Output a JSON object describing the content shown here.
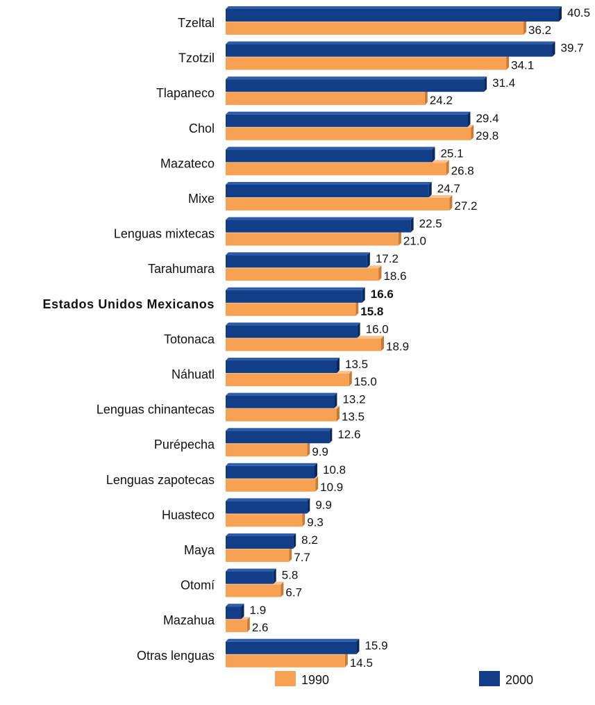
{
  "chart_data": {
    "type": "bar",
    "orientation": "horizontal",
    "categories": [
      "Tzeltal",
      "Tzotzil",
      "Tlapaneco",
      "Chol",
      "Mazateco",
      "Mixe",
      "Lenguas mixtecas",
      "Tarahumara",
      "Estados Unidos Mexicanos",
      "Totonaca",
      "Náhuatl",
      "Lenguas chinantecas",
      "Purépecha",
      "Lenguas zapotecas",
      "Huasteco",
      "Maya",
      "Otomí",
      "Mazahua",
      "Otras lenguas"
    ],
    "highlight_category": "Estados Unidos Mexicanos",
    "series": [
      {
        "name": "2000",
        "color": "#123E87",
        "values": [
          40.5,
          39.7,
          31.4,
          29.4,
          25.1,
          24.7,
          22.5,
          17.2,
          16.6,
          16.0,
          13.5,
          13.2,
          12.6,
          10.8,
          9.9,
          8.2,
          5.8,
          1.9,
          15.9
        ],
        "labels": [
          "40.5",
          "39.7",
          "31.4",
          "29.4",
          "25.1",
          "24.7",
          "22.5",
          "17.2",
          "16.6",
          "16.0",
          "13.5",
          "13.2",
          "12.6",
          "10.8",
          "9.9",
          "8.2",
          "5.8",
          "1.9",
          "15.9"
        ]
      },
      {
        "name": "1990",
        "color": "#F7A155",
        "values": [
          36.2,
          34.1,
          24.2,
          29.8,
          26.8,
          27.2,
          21.0,
          18.6,
          15.8,
          18.9,
          15.0,
          13.5,
          9.9,
          10.9,
          9.3,
          7.7,
          6.7,
          2.6,
          14.5
        ],
        "labels": [
          "36.2",
          "34.1",
          "24.2",
          "29.8",
          "26.8",
          "27.2",
          "21.0",
          "18.6",
          "15.8",
          "18.9",
          "15.0",
          "13.5",
          "9.9",
          "10.9",
          "9.3",
          "7.7",
          "6.7",
          "2.6",
          "14.5"
        ]
      }
    ],
    "title": "",
    "xlabel": "",
    "ylabel": "",
    "xlim": [
      0,
      40.5
    ],
    "grid": false,
    "legend": {
      "position": "bottom",
      "entries": [
        "1990",
        "2000"
      ]
    }
  }
}
